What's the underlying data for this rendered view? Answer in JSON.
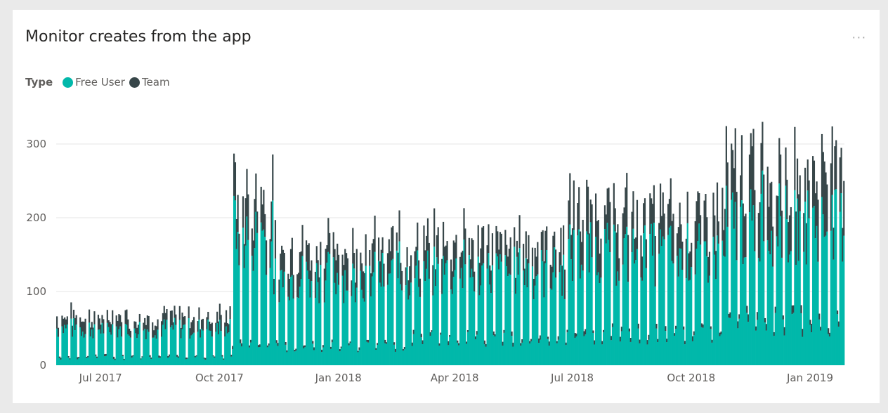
{
  "card": {
    "title": "Monitor creates from the app",
    "more_label": "···"
  },
  "legend": {
    "title": "Type",
    "items": [
      {
        "label": "Free User",
        "color": "#01b8aa"
      },
      {
        "label": "Team",
        "color": "#374649"
      }
    ]
  },
  "chart_data": {
    "type": "bar",
    "stacked": true,
    "title": "Monitor creates from the app",
    "xlabel": "",
    "ylabel": "",
    "ylim": [
      0,
      330
    ],
    "yticks": [
      0,
      100,
      200,
      300
    ],
    "xtick_labels": [
      "Jul 2017",
      "Oct 2017",
      "Jan 2018",
      "Apr 2018",
      "Jul 2018",
      "Oct 2018",
      "Jan 2019"
    ],
    "xtick_dates": [
      "2017-07-01",
      "2017-10-01",
      "2018-01-01",
      "2018-04-01",
      "2018-07-01",
      "2018-10-01",
      "2019-01-01"
    ],
    "grid": true,
    "legend_position": "top-left",
    "series_names": [
      "Free User",
      "Team"
    ],
    "date_range": [
      "2017-06-01",
      "2019-01-31"
    ],
    "weekly_pattern": [
      {
        "date_from": "2017-06-01",
        "date_to": "2017-10-14",
        "weekday_free": 50,
        "weekday_team": 15,
        "weekend_free": 10,
        "weekend_team": 2
      },
      {
        "date_from": "2017-10-15",
        "date_to": "2017-11-15",
        "weekday_free": 175,
        "weekday_team": 45,
        "weekend_free": 25,
        "weekend_team": 4
      },
      {
        "date_from": "2017-11-16",
        "date_to": "2018-02-28",
        "weekday_free": 120,
        "weekday_team": 35,
        "weekend_free": 25,
        "weekend_team": 3
      },
      {
        "date_from": "2018-03-01",
        "date_to": "2018-06-30",
        "weekday_free": 125,
        "weekday_team": 35,
        "weekend_free": 35,
        "weekend_team": 4
      },
      {
        "date_from": "2018-07-01",
        "date_to": "2018-10-31",
        "weekday_free": 150,
        "weekday_team": 50,
        "weekend_free": 40,
        "weekend_team": 5
      },
      {
        "date_from": "2018-11-01",
        "date_to": "2019-01-31",
        "weekday_free": 190,
        "weekday_team": 70,
        "weekend_free": 55,
        "weekend_team": 8
      }
    ],
    "peaks": [
      {
        "date": "2017-10-16",
        "total": 287
      },
      {
        "date": "2017-11-06",
        "total": 242
      },
      {
        "date": "2018-02-21",
        "total": 210
      },
      {
        "date": "2018-04-12",
        "total": 213
      },
      {
        "date": "2018-07-09",
        "total": 220
      },
      {
        "date": "2018-11-29",
        "total": 330
      },
      {
        "date": "2018-12-12",
        "total": 308
      },
      {
        "date": "2019-01-24",
        "total": 297
      }
    ]
  }
}
